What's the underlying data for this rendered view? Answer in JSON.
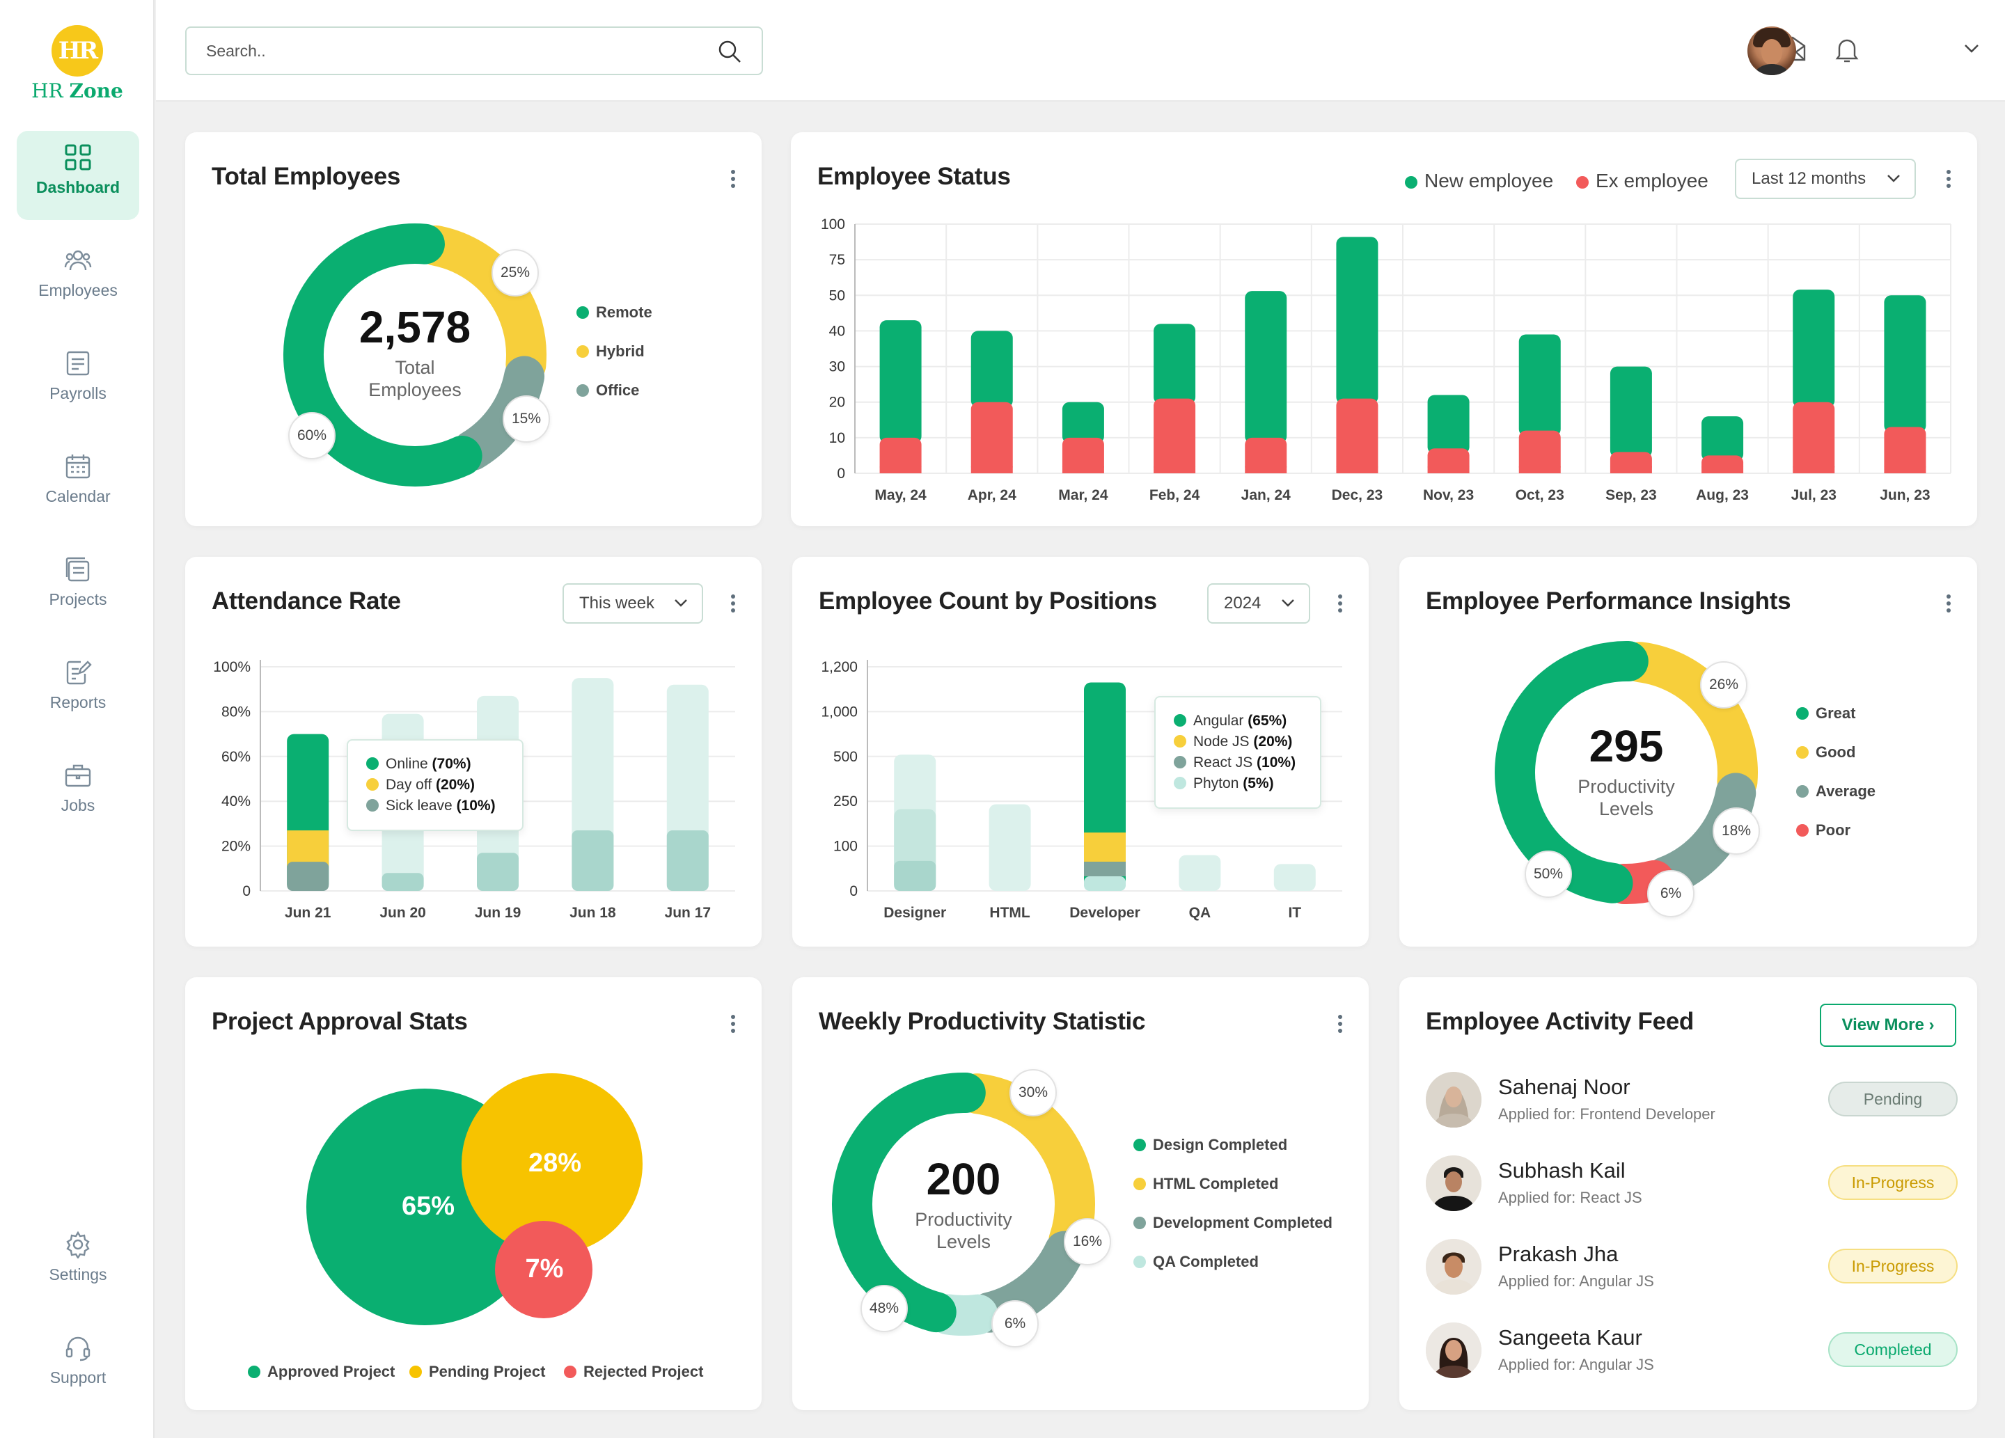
{
  "brand": {
    "initials": "HR",
    "name_part1": "HR",
    "name_part2": "Zone"
  },
  "sidebar": {
    "items": [
      {
        "label": "Dashboard",
        "icon": "dashboard-grid-icon",
        "active": true
      },
      {
        "label": "Employees",
        "icon": "employees-icon"
      },
      {
        "label": "Payrolls",
        "icon": "payroll-icon"
      },
      {
        "label": "Calendar",
        "icon": "calendar-icon"
      },
      {
        "label": "Projects",
        "icon": "projects-icon"
      },
      {
        "label": "Reports",
        "icon": "reports-icon"
      },
      {
        "label": "Jobs",
        "icon": "briefcase-icon"
      }
    ],
    "bottom_items": [
      {
        "label": "Settings",
        "icon": "gear-icon"
      },
      {
        "label": "Support",
        "icon": "headset-icon"
      }
    ]
  },
  "header": {
    "search_placeholder": "Search..",
    "icons": [
      "mail-icon",
      "bell-icon",
      "chevron-down-icon"
    ]
  },
  "colors": {
    "green": "#0aaf71",
    "yellow": "#f7cf3b",
    "grey": "#7fa39b",
    "red": "#f25a5a",
    "mint": "#bfe7df",
    "mint_light": "#dcf1ec"
  },
  "total_employees": {
    "title": "Total Employees",
    "total": "2,578",
    "center_label_line1": "Total",
    "center_label_line2": "Employees",
    "legend": [
      {
        "label": "Remote",
        "color": "#0aaf71"
      },
      {
        "label": "Hybrid",
        "color": "#f7cf3b"
      },
      {
        "label": "Office",
        "color": "#7fa39b"
      }
    ],
    "badges": [
      "25%",
      "15%",
      "60%"
    ],
    "chart_data": {
      "type": "pie",
      "categories": [
        "Remote",
        "Hybrid",
        "Office"
      ],
      "values": [
        60,
        25,
        15
      ]
    }
  },
  "employee_status": {
    "title": "Employee Status",
    "legend": [
      {
        "label": "New employee",
        "color": "#0aaf71"
      },
      {
        "label": "Ex employee",
        "color": "#f25a5a"
      }
    ],
    "period": "Last 12 months",
    "y_ticks": [
      "100",
      "75",
      "50",
      "40",
      "30",
      "20",
      "10",
      "0"
    ],
    "chart_data": {
      "type": "bar",
      "stacked": true,
      "categories": [
        "May, 24",
        "Apr, 24",
        "Mar, 24",
        "Feb, 24",
        "Jan, 24",
        "Dec, 23",
        "Nov, 23",
        "Oct, 23",
        "Sep, 23",
        "Aug, 23",
        "Jul, 23",
        "Jun, 23"
      ],
      "y_ticks": [
        0,
        10,
        20,
        30,
        40,
        50,
        75,
        100
      ],
      "series": [
        {
          "name": "New employee",
          "color": "#0aaf71",
          "values": [
            33,
            20,
            10,
            21,
            43,
            70,
            15,
            27,
            24,
            11,
            34,
            37
          ]
        },
        {
          "name": "Ex employee",
          "color": "#f25a5a",
          "values": [
            10,
            20,
            10,
            21,
            10,
            21,
            7,
            12,
            6,
            5,
            20,
            13
          ]
        }
      ]
    }
  },
  "attendance": {
    "title": "Attendance Rate",
    "period": "This week",
    "y_ticks": [
      "100%",
      "80%",
      "60%",
      "40%",
      "20%",
      "0"
    ],
    "tooltip": [
      {
        "label": "Online",
        "value": "(70%)",
        "color": "#0aaf71"
      },
      {
        "label": "Day off",
        "value": "(20%)",
        "color": "#f7cf3b"
      },
      {
        "label": "Sick leave",
        "value": "(10%)",
        "color": "#7fa39b"
      }
    ],
    "chart_data": {
      "type": "bar",
      "stacked": true,
      "categories": [
        "Jun 21",
        "Jun 20",
        "Jun 19",
        "Jun 18",
        "Jun 17"
      ],
      "ylim": [
        0,
        100
      ],
      "series": [
        {
          "name": "Sick leave",
          "values": [
            13,
            8,
            17,
            27,
            27
          ]
        },
        {
          "name": "Day off",
          "values": [
            14,
            12,
            12,
            0,
            0
          ]
        },
        {
          "name": "Online",
          "values": [
            43,
            59,
            58,
            68,
            65
          ]
        }
      ]
    }
  },
  "positions": {
    "title": "Employee Count by Positions",
    "period": "2024",
    "y_ticks": [
      "1,200",
      "1,000",
      "500",
      "250",
      "100",
      "0"
    ],
    "tooltip": [
      {
        "label": "Angular",
        "value": "(65%)",
        "color": "#0aaf71"
      },
      {
        "label": "Node JS",
        "value": "(20%)",
        "color": "#f7cf3b"
      },
      {
        "label": "React JS",
        "value": "(10%)",
        "color": "#7fa39b"
      },
      {
        "label": "Phyton",
        "value": "(5%)",
        "color": "#bfe7df"
      }
    ],
    "chart_data": {
      "type": "bar",
      "categories": [
        "Designer",
        "HTML",
        "Developer",
        "QA",
        "IT"
      ],
      "y_ticks": [
        0,
        100,
        250,
        500,
        1000,
        1200
      ],
      "values": [
        520,
        240,
        1130,
        80,
        60
      ]
    }
  },
  "performance": {
    "title": "Employee Performance Insights",
    "total": "295",
    "center_label_line1": "Productivity",
    "center_label_line2": "Levels",
    "legend": [
      {
        "label": "Great",
        "color": "#0aaf71"
      },
      {
        "label": "Good",
        "color": "#f7cf3b"
      },
      {
        "label": "Average",
        "color": "#7fa39b"
      },
      {
        "label": "Poor",
        "color": "#f25a5a"
      }
    ],
    "badges": [
      "26%",
      "18%",
      "6%",
      "50%"
    ],
    "chart_data": {
      "type": "pie",
      "categories": [
        "Great",
        "Good",
        "Average",
        "Poor"
      ],
      "values": [
        50,
        26,
        18,
        6
      ]
    }
  },
  "approval": {
    "title": "Project Approval Stats",
    "legend": [
      {
        "label": "Approved Project",
        "color": "#0aaf71"
      },
      {
        "label": "Pending Project",
        "color": "#f7c300"
      },
      {
        "label": "Rejected Project",
        "color": "#f25a5a"
      }
    ],
    "labels": [
      "65%",
      "28%",
      "7%"
    ],
    "chart_data": {
      "type": "bubble",
      "categories": [
        "Approved Project",
        "Pending Project",
        "Rejected Project"
      ],
      "values": [
        65,
        28,
        7
      ]
    }
  },
  "weekly": {
    "title": "Weekly Productivity Statistic",
    "total": "200",
    "center_label_line1": "Productivity",
    "center_label_line2": "Levels",
    "legend": [
      {
        "label": "Design Completed",
        "color": "#0aaf71"
      },
      {
        "label": "HTML Completed",
        "color": "#f7cf3b"
      },
      {
        "label": "Development Completed",
        "color": "#7fa39b"
      },
      {
        "label": "QA Completed",
        "color": "#bfe7df"
      }
    ],
    "badges": [
      "30%",
      "16%",
      "6%",
      "48%"
    ],
    "chart_data": {
      "type": "pie",
      "categories": [
        "Design Completed",
        "HTML Completed",
        "Development Completed",
        "QA Completed"
      ],
      "values": [
        48,
        30,
        16,
        6
      ]
    }
  },
  "feed": {
    "title": "Employee Activity Feed",
    "view_more": "View More",
    "items": [
      {
        "name": "Sahenaj Noor",
        "role": "Applied for: Frontend Developer",
        "status": "Pending",
        "kind": "pending"
      },
      {
        "name": "Subhash Kail",
        "role": "Applied for: React JS",
        "status": "In-Progress",
        "kind": "progress"
      },
      {
        "name": "Prakash Jha",
        "role": "Applied for: Angular JS",
        "status": "In-Progress",
        "kind": "progress"
      },
      {
        "name": "Sangeeta Kaur",
        "role": "Applied for: Angular JS",
        "status": "Completed",
        "kind": "completed"
      }
    ]
  }
}
